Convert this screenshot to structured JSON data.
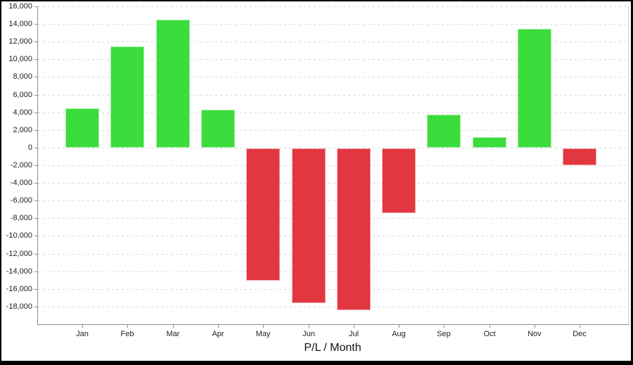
{
  "window": {
    "background": "#ffffff",
    "border_color": "#000000"
  },
  "chart_data": {
    "type": "bar",
    "title": "P/L / Month",
    "categories": [
      "Jan",
      "Feb",
      "Mar",
      "Apr",
      "May",
      "Jun",
      "Jul",
      "Aug",
      "Sep",
      "Oct",
      "Nov",
      "Dec"
    ],
    "values": [
      4450,
      11500,
      14500,
      4290,
      -14950,
      -17500,
      -18300,
      -7300,
      3750,
      1170,
      13450,
      -1950
    ],
    "xlabel": "",
    "ylabel": "",
    "ylim": [
      -20000,
      16000
    ],
    "ytick_step": 2000,
    "ytick_values": [
      16000,
      14000,
      12000,
      10000,
      8000,
      6000,
      4000,
      2000,
      0,
      -2000,
      -4000,
      -6000,
      -8000,
      -10000,
      -12000,
      -14000,
      -16000,
      -18000
    ],
    "ytick_labels": [
      "16,000",
      "14,000",
      "12,000",
      "10,000",
      "8,000",
      "6,000",
      "4,000",
      "2,000",
      "0",
      "-2,000",
      "-4,000",
      "-6,000",
      "-8,000",
      "-10,000",
      "-12,000",
      "-14,000",
      "-16,000",
      "-18,000"
    ],
    "grid": "dashed-horizontal",
    "legend": "none",
    "colors": {
      "positive": "#3cdc3c",
      "negative": "#e23740",
      "grid": "#d8d8d8",
      "axis": "#8f8f8f",
      "frame": "#d2d2d2",
      "text": "#222222",
      "title_text": "#111111"
    }
  }
}
